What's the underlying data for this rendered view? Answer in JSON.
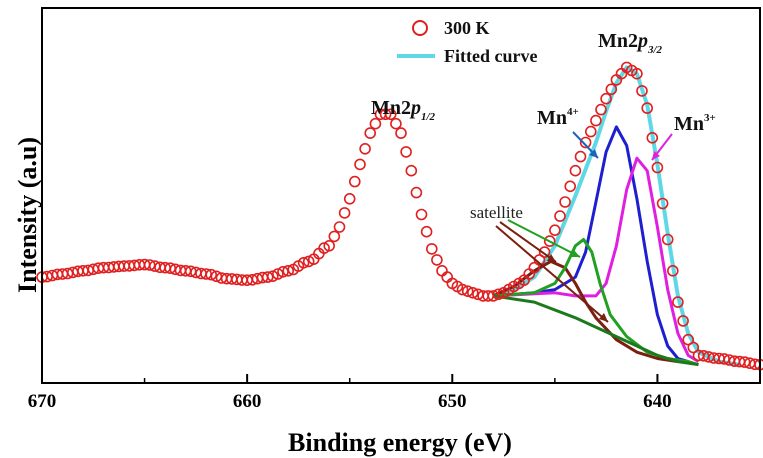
{
  "chart_data": {
    "type": "scatter",
    "title": "",
    "xlabel": "Binding energy (eV)",
    "ylabel": "Intensity (a.u)",
    "xlim": [
      670,
      635
    ],
    "ylim": [
      0,
      100
    ],
    "x_reversed": true,
    "y_ticks_shown": false,
    "x_ticks": [
      670,
      660,
      650,
      640
    ],
    "x_tick_labels": [
      "670",
      "660",
      "650",
      "640"
    ],
    "grid": false,
    "legend": {
      "placement": "top-center",
      "entries": [
        {
          "label": "300 K",
          "marker": "open-circle",
          "color": "#e02020"
        },
        {
          "label": "Fitted curve",
          "marker": "line",
          "color": "#5fd8e6"
        }
      ]
    },
    "series": [
      {
        "name": "300 K",
        "kind": "points",
        "color": "#e02020",
        "x": [
          670,
          669,
          668,
          667,
          666,
          665,
          664,
          663,
          662,
          661,
          660,
          659,
          658,
          657,
          656,
          655.5,
          655,
          654.5,
          654,
          653.5,
          653,
          652.5,
          652,
          651.5,
          651,
          650.5,
          650,
          649.5,
          649,
          648.5,
          648,
          647.5,
          647,
          646.5,
          646,
          645.5,
          645,
          644.5,
          644,
          643.5,
          643,
          642.5,
          642,
          641.5,
          641,
          640.5,
          640,
          639.5,
          639,
          638.5,
          638,
          637,
          636,
          635
        ],
        "y": [
          30,
          31,
          32,
          33,
          33.5,
          34,
          33,
          32,
          31,
          29.5,
          29,
          30,
          32,
          35,
          40,
          46,
          55,
          66,
          76,
          82,
          82,
          76,
          64,
          50,
          39,
          32,
          28,
          26,
          25,
          24,
          24,
          25,
          27,
          29,
          33,
          38,
          45,
          54,
          64,
          73,
          80,
          87,
          93,
          97,
          95,
          84,
          65,
          42,
          22,
          10,
          5,
          4,
          3,
          2
        ]
      }
    ],
    "fit_components": [
      {
        "name": "Fitted curve",
        "color": "#5fd8e6",
        "x": [
          648,
          647,
          646,
          645,
          644,
          643,
          642.5,
          642,
          641.5,
          641,
          640.5,
          640,
          639.5,
          639,
          638.5,
          638,
          637,
          636
        ],
        "y": [
          24,
          26,
          30,
          40,
          56,
          73,
          83,
          92,
          97,
          95,
          85,
          66,
          44,
          24,
          12,
          6,
          3,
          2
        ]
      },
      {
        "name": "Mn4+",
        "color": "#1f1fcf",
        "x": [
          648,
          646,
          645,
          644,
          643.5,
          643,
          642.5,
          642,
          641.5,
          641,
          640.5,
          640,
          639.5,
          639,
          638.5
        ],
        "y": [
          24,
          25,
          26,
          30,
          38,
          54,
          70,
          78,
          72,
          55,
          35,
          18,
          8,
          4,
          3
        ]
      },
      {
        "name": "Mn3+",
        "color": "#e020e0",
        "x": [
          648,
          645,
          644,
          643,
          642.5,
          642,
          641.5,
          641,
          640.5,
          640,
          639.5,
          639,
          638.5,
          638
        ],
        "y": [
          24,
          25,
          24,
          24,
          28,
          40,
          58,
          68,
          64,
          46,
          26,
          12,
          5,
          3
        ]
      },
      {
        "name": "satellite",
        "color": "#7b1f10",
        "x": [
          648,
          647,
          646,
          645.2,
          644.5,
          644,
          643.5,
          643,
          642,
          641,
          640,
          639
        ],
        "y": [
          24,
          27,
          32,
          35,
          33,
          28,
          22,
          17,
          10,
          6,
          4,
          3
        ]
      },
      {
        "name": "satellite",
        "color": "#23a023",
        "x": [
          648,
          646,
          645,
          644.5,
          644,
          643.6,
          643.2,
          642.8,
          642.3,
          641.5,
          640.5,
          639.5,
          638.5,
          638
        ],
        "y": [
          24,
          25,
          28,
          33,
          40,
          42,
          38,
          28,
          18,
          11,
          6,
          4,
          3,
          2
        ]
      },
      {
        "name": "baseline",
        "color": "#1c7a1c",
        "x": [
          648,
          646,
          644,
          642,
          641,
          640,
          639,
          638
        ],
        "y": [
          24,
          22,
          17,
          11,
          8,
          5,
          3,
          2
        ]
      }
    ],
    "annotations": [
      {
        "label_main": "Mn2",
        "label_p": "p",
        "label_sub": "1/2"
      },
      {
        "label_main": "Mn2",
        "label_p": "p",
        "label_sub": "3/2"
      },
      {
        "label_main": "Mn",
        "label_sup": "4+"
      },
      {
        "label_main": "Mn",
        "label_sup": "3+"
      },
      {
        "label_main": "satellite"
      }
    ]
  }
}
